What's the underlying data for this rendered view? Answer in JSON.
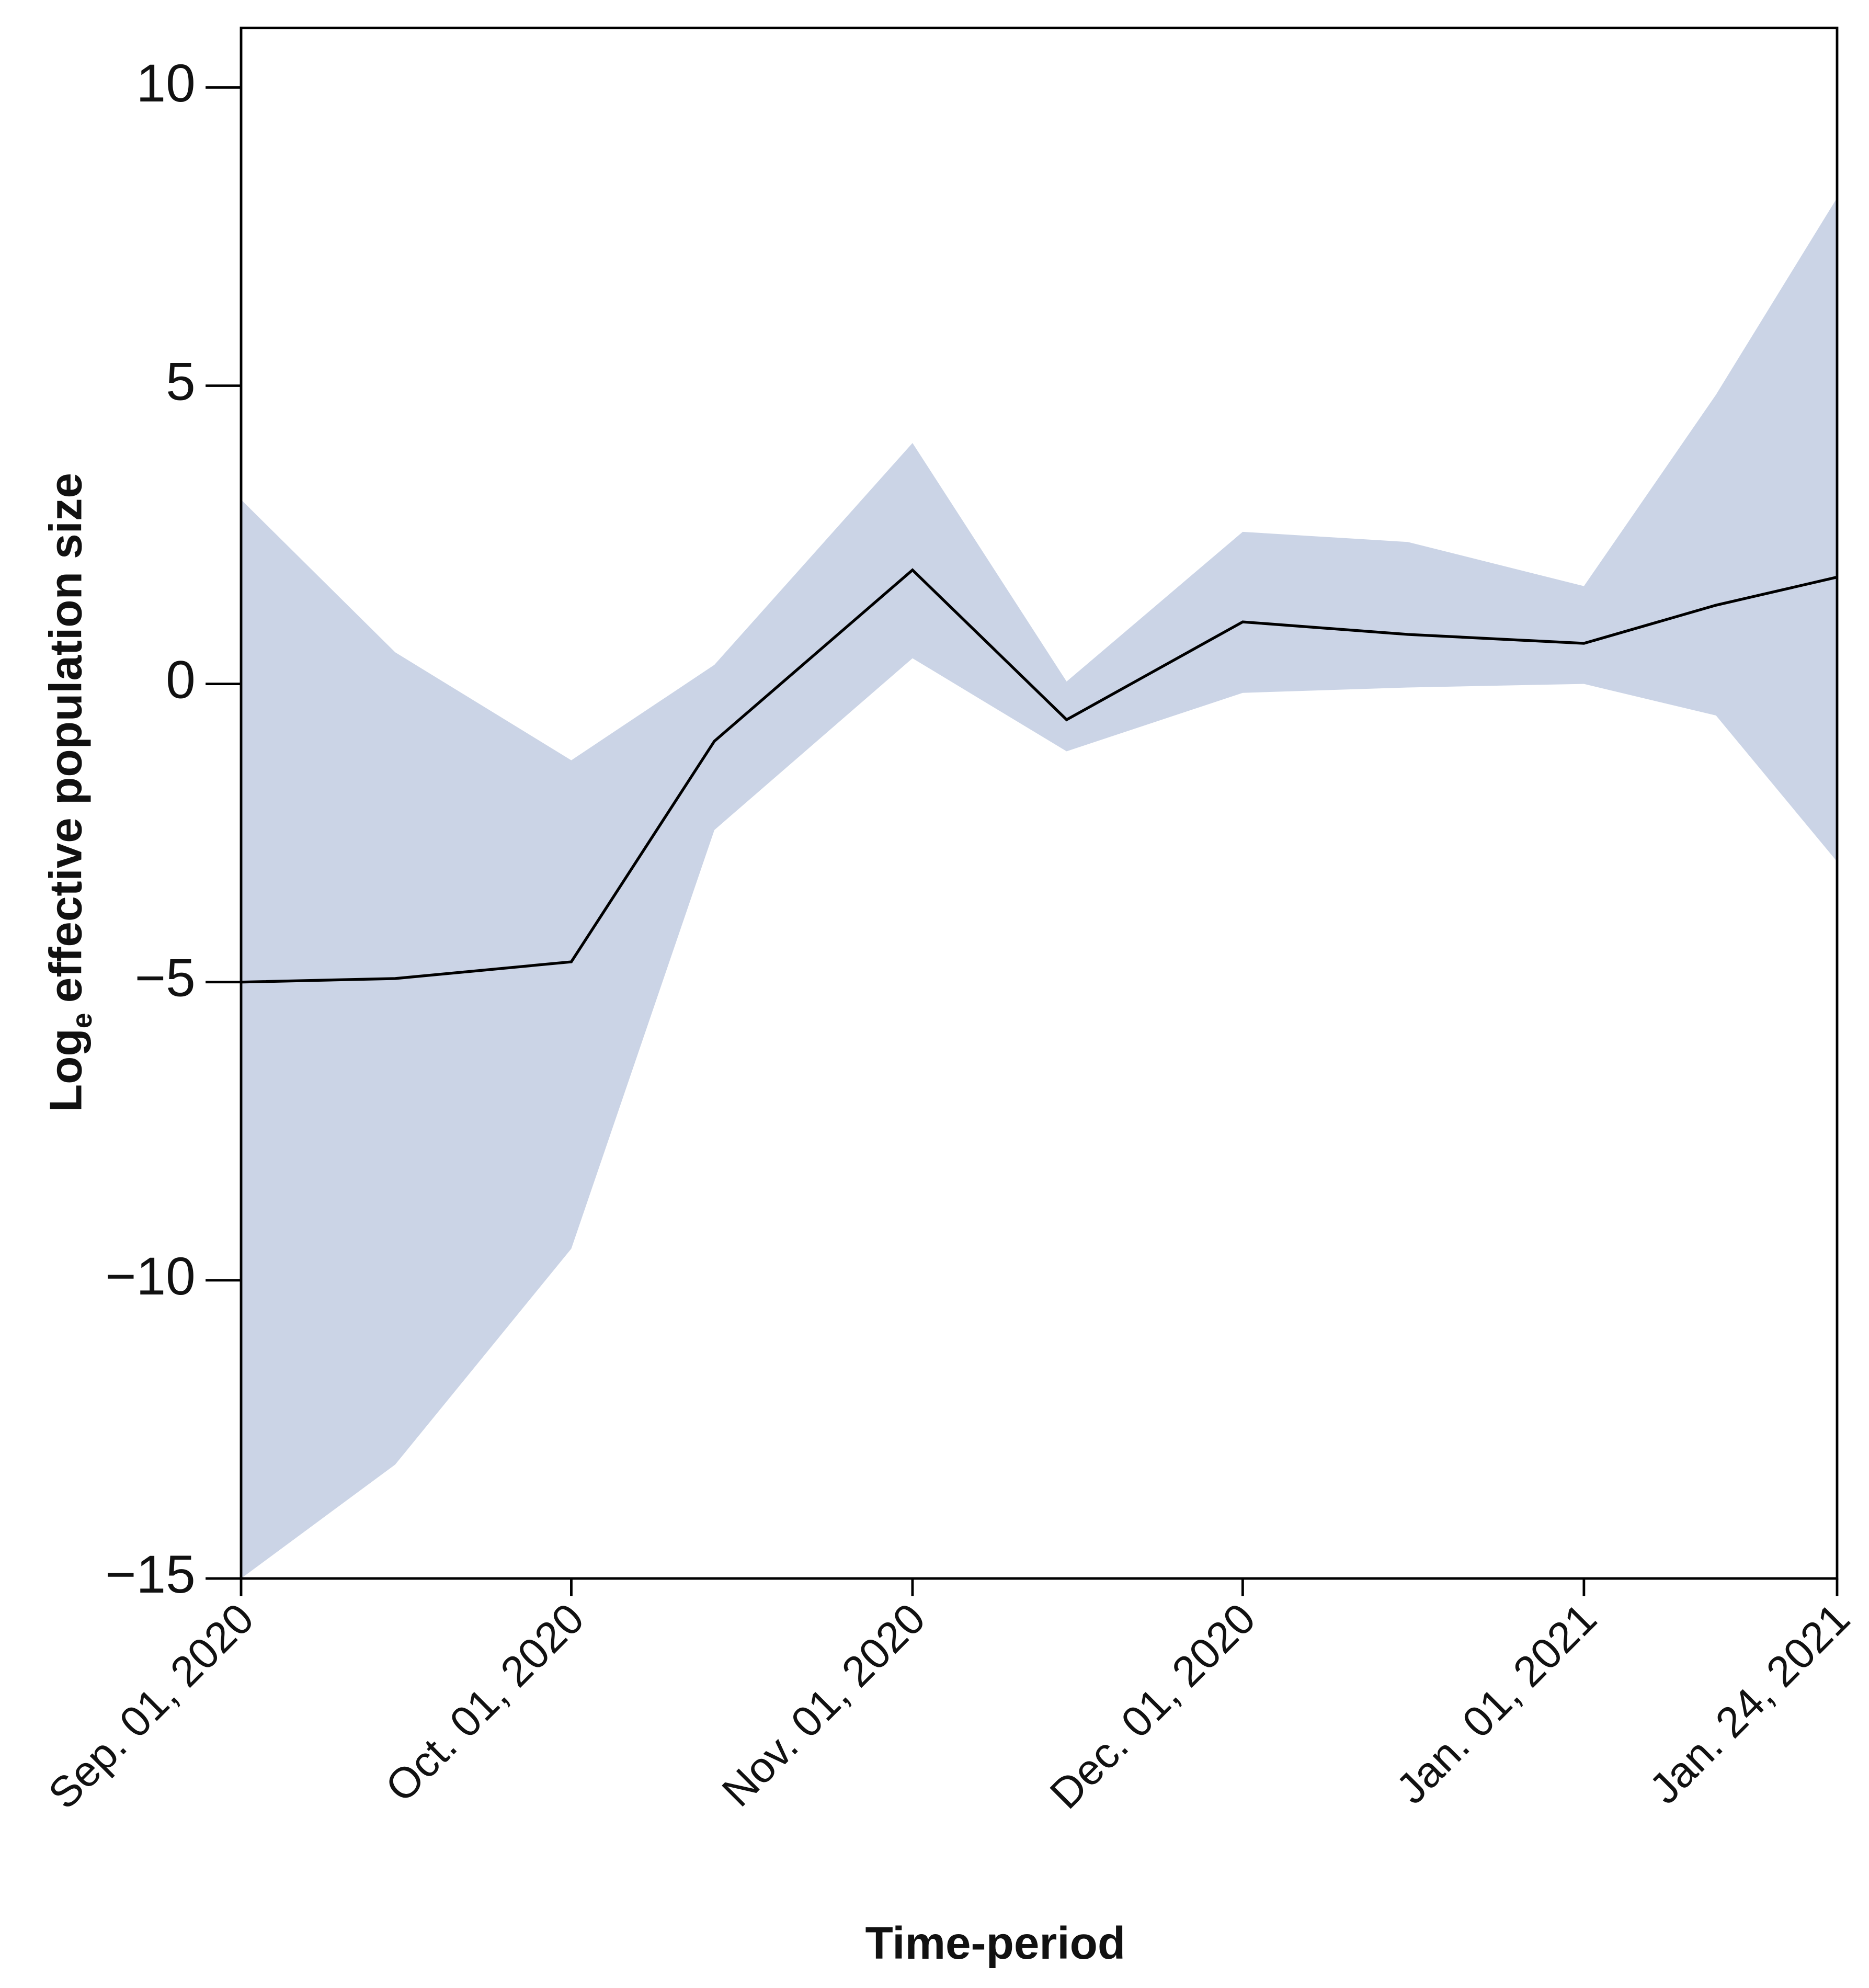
{
  "chart_data": {
    "type": "line",
    "x_label": "Time-period",
    "y_label_main": "Log",
    "y_label_sub": "e",
    "y_label_rest": "effective population size",
    "x": [
      "2020-09-01",
      "2020-09-15",
      "2020-10-01",
      "2020-10-14",
      "2020-11-01",
      "2020-11-15",
      "2020-12-01",
      "2020-12-16",
      "2021-01-01",
      "2021-01-13",
      "2021-01-24"
    ],
    "values": [
      -5.0,
      -4.94,
      -4.66,
      -0.96,
      1.91,
      -0.6,
      1.04,
      0.83,
      0.68,
      1.32,
      1.79
    ],
    "upper": [
      3.09,
      0.53,
      -1.28,
      0.32,
      4.04,
      0.04,
      2.55,
      2.38,
      1.64,
      4.85,
      8.15
    ],
    "lower": [
      -15.0,
      -13.09,
      -9.47,
      -2.45,
      0.43,
      -1.13,
      -0.15,
      -0.06,
      0.0,
      -0.53,
      -2.98
    ],
    "line_color": "#000000",
    "band_color": "#cbd4e6",
    "xlim": [
      "2020-09-01",
      "2021-01-24"
    ],
    "xticks": [
      {
        "value": "2020-09-01",
        "label": "Sep. 01, 2020"
      },
      {
        "value": "2020-10-01",
        "label": "Oct. 01, 2020"
      },
      {
        "value": "2020-11-01",
        "label": "Nov. 01, 2020"
      },
      {
        "value": "2020-12-01",
        "label": "Dec. 01, 2020"
      },
      {
        "value": "2021-01-01",
        "label": "Jan. 01, 2021"
      },
      {
        "value": "2021-01-24",
        "label": "Jan. 24, 2021"
      }
    ],
    "ylim": [
      -15,
      11
    ],
    "yticks": [
      10,
      5,
      0,
      {
        "value": -5,
        "label": "−5"
      },
      {
        "value": -10,
        "label": "−10"
      },
      {
        "value": -15,
        "label": "−15"
      }
    ]
  }
}
